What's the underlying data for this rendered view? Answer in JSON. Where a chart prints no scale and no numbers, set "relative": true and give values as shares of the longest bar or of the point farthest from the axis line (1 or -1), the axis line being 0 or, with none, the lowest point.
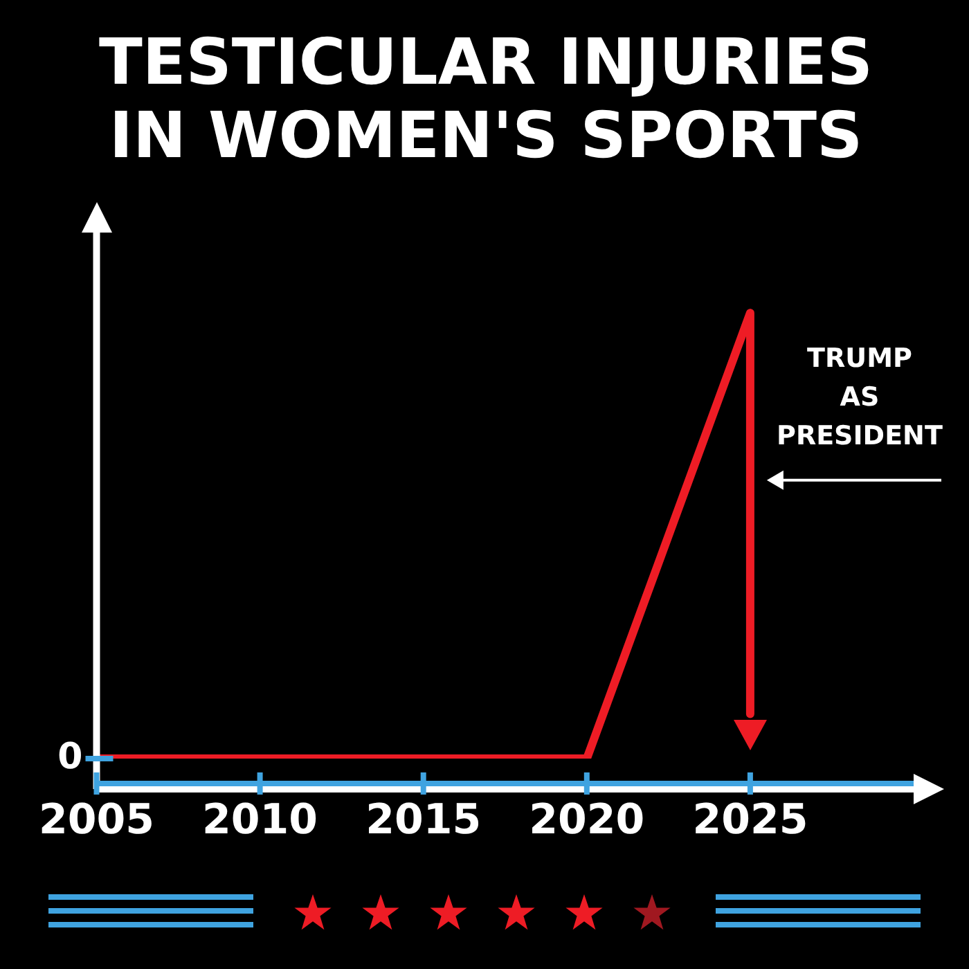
{
  "chart_data": {
    "type": "line",
    "title": "TESTICULAR INJURIES\nIN WOMEN'S SPORTS",
    "relative": true,
    "x": [
      2005,
      2020,
      2025,
      2025
    ],
    "xlim": [
      2005,
      2030
    ],
    "xticks": [
      2005,
      2010,
      2015,
      2020,
      2025
    ],
    "series": [
      {
        "color": "#ee1c25",
        "values": [
          0,
          0,
          1,
          0.1
        ]
      }
    ],
    "annotations": [
      "0",
      {
        "text": "TRUMP\nAS\nPRESIDENT",
        "x": 2025,
        "y": 0.6
      }
    ],
    "grid": false,
    "legend": false,
    "marker": "none",
    "line_style": "solid"
  }
}
